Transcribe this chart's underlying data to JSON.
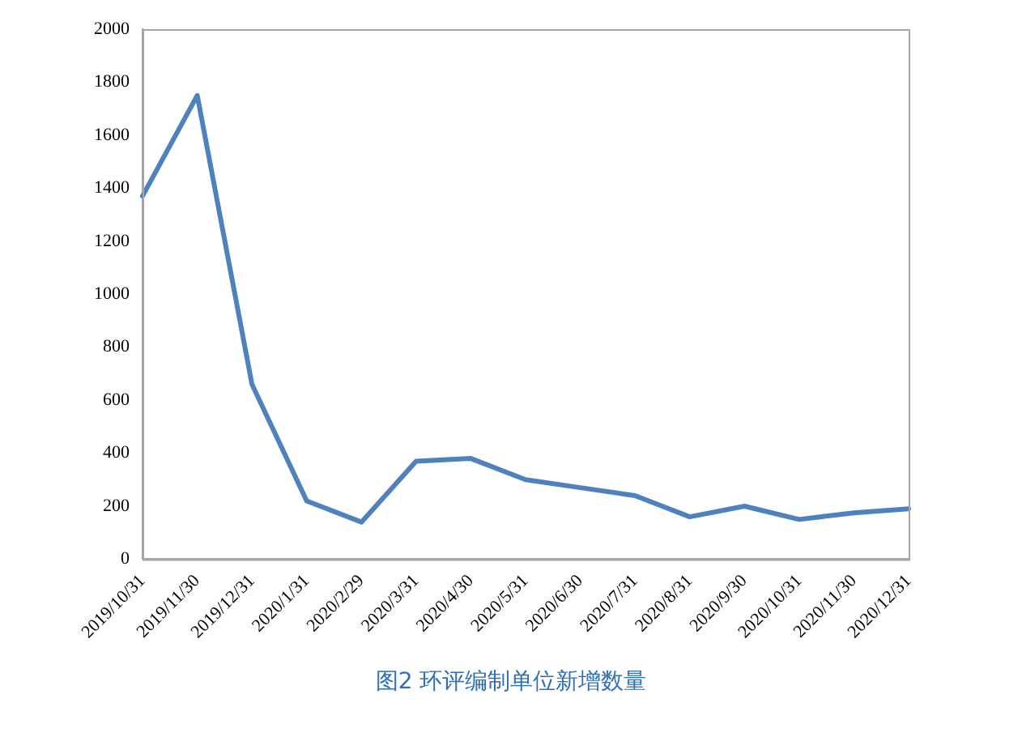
{
  "chart_data": {
    "type": "line",
    "title": "图2 环评编制单位新增数量",
    "categories": [
      "2019/10/31",
      "2019/11/30",
      "2019/12/31",
      "2020/1/31",
      "2020/2/29",
      "2020/3/31",
      "2020/4/30",
      "2020/5/31",
      "2020/6/30",
      "2020/7/31",
      "2020/8/31",
      "2020/9/30",
      "2020/10/31",
      "2020/11/30",
      "2020/12/31"
    ],
    "series": [
      {
        "color": "#4f81bd",
        "values": [
          1370,
          1750,
          660,
          220,
          140,
          370,
          380,
          300,
          270,
          240,
          160,
          200,
          150,
          175,
          190
        ]
      }
    ],
    "ylim": [
      0,
      2000
    ],
    "yticks": [
      0,
      200,
      400,
      600,
      800,
      1000,
      1200,
      1400,
      1600,
      1800,
      2000
    ],
    "grid": false,
    "legend": false,
    "marker": "none",
    "line_style": "solid"
  }
}
